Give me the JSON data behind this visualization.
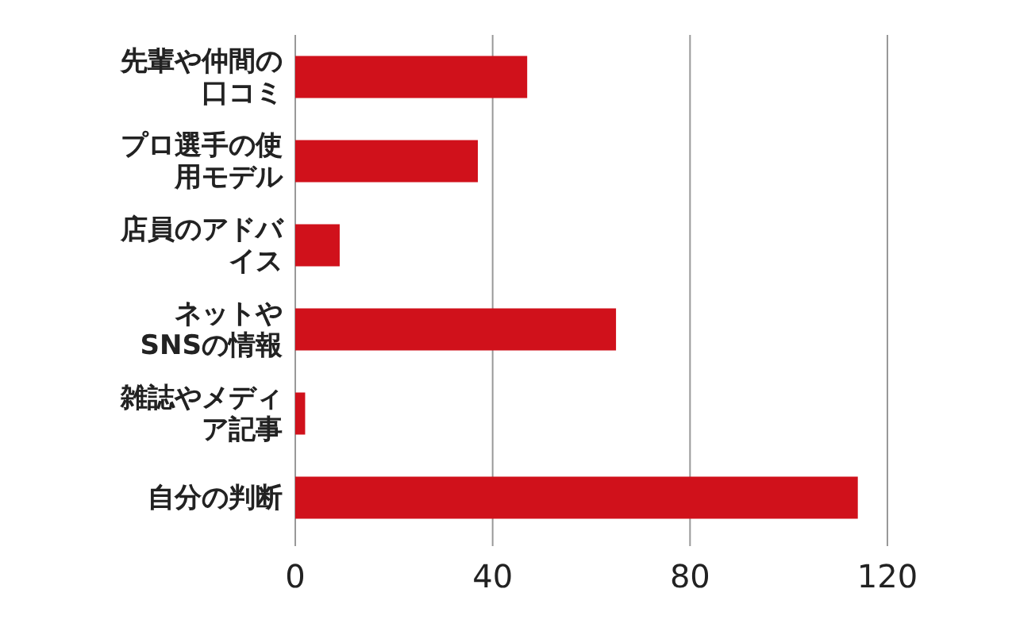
{
  "chart_data": {
    "type": "bar",
    "orientation": "horizontal",
    "categories": [
      "先輩や仲間の口コミ",
      "プロ選手の使用モデル",
      "店員のアドバイス",
      "ネットやSNSの情報",
      "雑誌やメディア記事",
      "自分の判断"
    ],
    "values": [
      47,
      37,
      9,
      65,
      2,
      114
    ],
    "color": "#d0111b",
    "xlim": [
      0,
      120
    ],
    "xticks": [
      0,
      40,
      80,
      120
    ],
    "grid": "x"
  }
}
